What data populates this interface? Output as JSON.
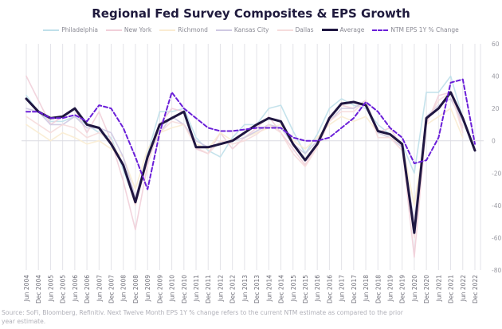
{
  "chart_data": {
    "type": "line",
    "title": "Regional Fed Survey Composites & EPS Growth",
    "xlabel": "",
    "ylabel": "",
    "ylim": [
      -80,
      60
    ],
    "yticks": [
      60,
      40,
      20,
      0,
      -20,
      -40,
      -60,
      -80
    ],
    "y_axis_side": "right",
    "grid": "vertical",
    "legend_position": "top",
    "x": [
      "Jun 2004",
      "Dec 2004",
      "Jun 2005",
      "Dec 2005",
      "Jun 2006",
      "Dec 2006",
      "Jun 2007",
      "Dec 2007",
      "Jun 2008",
      "Dec 2008",
      "Jun 2009",
      "Dec 2009",
      "Jun 2010",
      "Dec 2010",
      "Jun 2011",
      "Dec 2011",
      "Jun 2012",
      "Dec 2012",
      "Jun 2013",
      "Dec 2013",
      "Jun 2014",
      "Dec 2014",
      "Jun 2015",
      "Dec 2015",
      "Jun 2016",
      "Dec 2016",
      "Jun 2017",
      "Dec 2017",
      "Jun 2018",
      "Dec 2018",
      "Jun 2019",
      "Dec 2019",
      "Jun 2020",
      "Dec 2020",
      "Jun 2021",
      "Dec 2021",
      "Jun 2022",
      "Dec 2022"
    ],
    "series": [
      {
        "name": "Philadelphia",
        "color": "#bfe0ea",
        "style": "thin",
        "values": [
          28,
          18,
          12,
          12,
          15,
          10,
          5,
          2,
          -18,
          -38,
          -8,
          18,
          18,
          20,
          2,
          -6,
          -10,
          2,
          10,
          10,
          20,
          22,
          6,
          -8,
          4,
          20,
          26,
          22,
          20,
          10,
          4,
          -2,
          -20,
          30,
          30,
          40,
          14,
          null
        ]
      },
      {
        "name": "New York",
        "color": "#f1cfd9",
        "style": "thin",
        "values": [
          40,
          25,
          10,
          15,
          20,
          5,
          18,
          0,
          -25,
          -55,
          -15,
          10,
          20,
          18,
          -5,
          -8,
          5,
          -5,
          2,
          8,
          15,
          5,
          -5,
          -15,
          -2,
          15,
          22,
          20,
          25,
          5,
          8,
          -4,
          -72,
          10,
          28,
          30,
          8,
          null
        ]
      },
      {
        "name": "Richmond",
        "color": "#faecd2",
        "style": "thin",
        "values": [
          10,
          5,
          0,
          5,
          2,
          -2,
          0,
          -5,
          -10,
          -30,
          -5,
          5,
          8,
          10,
          -2,
          -5,
          5,
          0,
          2,
          5,
          8,
          10,
          0,
          -5,
          2,
          10,
          15,
          12,
          15,
          5,
          2,
          -2,
          -40,
          10,
          15,
          20,
          2,
          null
        ]
      },
      {
        "name": "Kansas City",
        "color": "#cfc9e2",
        "style": "thin",
        "values": [
          20,
          18,
          10,
          10,
          15,
          8,
          8,
          5,
          -10,
          -35,
          -10,
          5,
          15,
          10,
          0,
          -4,
          -2,
          0,
          2,
          6,
          10,
          8,
          -2,
          -8,
          0,
          12,
          20,
          20,
          25,
          5,
          2,
          -4,
          -50,
          15,
          22,
          26,
          12,
          null
        ]
      },
      {
        "name": "Dallas",
        "color": "#f6dcdc",
        "style": "thin",
        "values": [
          15,
          10,
          5,
          10,
          8,
          2,
          5,
          0,
          -15,
          -40,
          -12,
          5,
          12,
          10,
          -4,
          -8,
          0,
          -2,
          0,
          4,
          10,
          5,
          -8,
          -16,
          -4,
          12,
          18,
          18,
          25,
          2,
          2,
          -6,
          -60,
          12,
          25,
          30,
          5,
          null
        ]
      },
      {
        "name": "Average",
        "color": "#1f1641",
        "style": "thick",
        "values": [
          26,
          18,
          14,
          15,
          20,
          10,
          8,
          -2,
          -15,
          -38,
          -10,
          10,
          14,
          18,
          -4,
          -4,
          -2,
          0,
          5,
          10,
          14,
          12,
          -2,
          -12,
          -2,
          14,
          23,
          24,
          22,
          6,
          4,
          -2,
          -57,
          14,
          20,
          30,
          14,
          -6
        ]
      },
      {
        "name": "NTM EPS 1Y % Change",
        "color": "#6a1fd8",
        "style": "dashed",
        "values": [
          18,
          18,
          14,
          14,
          16,
          12,
          22,
          20,
          8,
          -10,
          -30,
          5,
          30,
          20,
          14,
          8,
          6,
          6,
          7,
          8,
          8,
          8,
          2,
          0,
          0,
          2,
          8,
          14,
          24,
          18,
          8,
          2,
          -14,
          -12,
          2,
          36,
          38,
          -2
        ]
      }
    ]
  },
  "legend": [
    {
      "label": "Philadelphia"
    },
    {
      "label": "New York"
    },
    {
      "label": "Richmond"
    },
    {
      "label": "Kansas City"
    },
    {
      "label": "Dallas"
    },
    {
      "label": "Average"
    },
    {
      "label": "NTM EPS 1Y % Change"
    }
  ],
  "source_note": "Source: SoFi, Bloomberg, Refinitiv. Next Twelve Month EPS 1Y % change refers to the current NTM estimate as compared to the prior year estimate."
}
